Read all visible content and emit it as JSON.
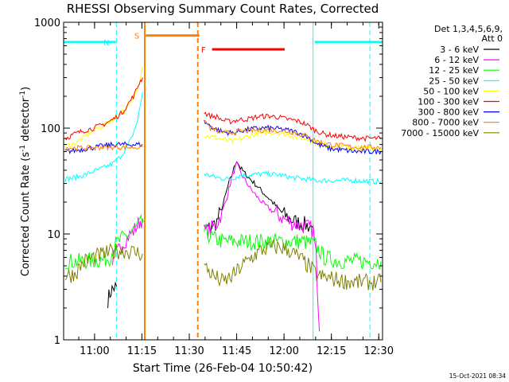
{
  "chart_data": {
    "type": "line",
    "title": "RHESSI Observing Summary Count Rates, Corrected",
    "xlabel": "Start Time (26-Feb-04 10:50:42)",
    "ylabel_main": "Corrected Count Rate (s",
    "ylabel_sup1": "-1",
    "ylabel_mid": " detector",
    "ylabel_sup2": "-1",
    "ylabel_end": ")",
    "y_scale": "log",
    "ylim": [
      1,
      1000
    ],
    "xlim_minutes_after_1050_42": [
      -0.5,
      100.5
    ],
    "x_ticks": [
      {
        "label": "11:00",
        "min": 9.3
      },
      {
        "label": "11:15",
        "min": 24.3
      },
      {
        "label": "11:30",
        "min": 39.3
      },
      {
        "label": "11:45",
        "min": 54.3
      },
      {
        "label": "12:00",
        "min": 69.3
      },
      {
        "label": "12:15",
        "min": 84.3
      },
      {
        "label": "12:30",
        "min": 99.3
      }
    ],
    "y_ticks": [
      {
        "label": "1",
        "value": 1
      },
      {
        "label": "10",
        "value": 10
      },
      {
        "label": "100",
        "value": 100
      },
      {
        "label": "1000",
        "value": 1000
      }
    ],
    "legend_header": [
      "Det 1,3,4,5,6,9,",
      "Att 0"
    ],
    "legend_placement": "right",
    "footer_date": "15-Oct-2021 08:34",
    "grid": false,
    "flags": [
      {
        "label": "N",
        "color": "#00ffff",
        "y": 650,
        "segments": [
          [
            -0.5,
            16
          ],
          [
            79,
            100.5
          ]
        ],
        "vlines": [
          {
            "x": 16.2,
            "style": "dashed"
          },
          {
            "x": 78.5,
            "style": "solid"
          },
          {
            "x": 96.5,
            "style": "dashed"
          }
        ]
      },
      {
        "label": "S",
        "color": "#ff8000",
        "y": 750,
        "segments": [
          [
            25.5,
            42.5
          ]
        ],
        "vlines": [
          {
            "x": 25.2,
            "style": "solid"
          },
          {
            "x": 42.0,
            "style": "dashed"
          }
        ]
      },
      {
        "label": "F",
        "color": "#ff0000",
        "y": 555,
        "segments": [
          [
            46.5,
            69.5
          ]
        ],
        "vlines": []
      }
    ],
    "series": [
      {
        "name": "3 - 6 keV",
        "color": "#000000",
        "segments": [
          [
            [
              13.5,
              2.4
            ],
            [
              14.5,
              2.9
            ],
            [
              15.5,
              3.1
            ],
            [
              16.3,
              3.2
            ]
          ],
          [
            [
              44.0,
              11
            ],
            [
              46.0,
              11.5
            ],
            [
              48.0,
              13
            ],
            [
              50.0,
              19
            ],
            [
              51.5,
              28
            ],
            [
              53.0,
              38
            ],
            [
              54.3,
              50
            ],
            [
              55.5,
              42
            ],
            [
              57.0,
              37
            ],
            [
              59.0,
              32
            ],
            [
              61.0,
              28
            ],
            [
              63.0,
              24
            ],
            [
              65.0,
              21
            ],
            [
              67.0,
              18
            ],
            [
              69.0,
              15.5
            ],
            [
              71.0,
              14
            ],
            [
              73.0,
              13
            ],
            [
              75.0,
              12.5
            ],
            [
              77.0,
              12
            ],
            [
              78.3,
              11.5
            ]
          ]
        ]
      },
      {
        "name": "6 - 12 keV",
        "color": "#ff00ff",
        "segments": [
          [
            [
              15.0,
              5.8
            ],
            [
              16.5,
              6.6
            ],
            [
              18.0,
              8.0
            ],
            [
              20.0,
              9.5
            ],
            [
              22.0,
              11
            ],
            [
              23.5,
              13
            ],
            [
              24.5,
              14
            ]
          ],
          [
            [
              44.0,
              10.5
            ],
            [
              46.0,
              11
            ],
            [
              48.0,
              12.5
            ],
            [
              50.0,
              17
            ],
            [
              51.5,
              24
            ],
            [
              53.0,
              36
            ],
            [
              54.3,
              46
            ],
            [
              55.5,
              38
            ],
            [
              57.0,
              32
            ],
            [
              59.0,
              26
            ],
            [
              61.0,
              22
            ],
            [
              63.0,
              19
            ],
            [
              65.0,
              17
            ],
            [
              67.0,
              15.5
            ],
            [
              69.0,
              14
            ],
            [
              71.0,
              13
            ],
            [
              73.0,
              12.5
            ],
            [
              75.0,
              12
            ],
            [
              77.0,
              11.5
            ],
            [
              78.5,
              11
            ],
            [
              79.5,
              6
            ],
            [
              80.5,
              1.2
            ]
          ]
        ]
      },
      {
        "name": "12 - 25 keV",
        "color": "#00ff00",
        "segments": [
          [
            [
              0.0,
              5.5
            ],
            [
              4.0,
              5.5
            ],
            [
              8.0,
              5.6
            ],
            [
              12.0,
              5.7
            ],
            [
              14.0,
              6.0
            ],
            [
              16.0,
              8.0
            ],
            [
              18.0,
              9.0
            ],
            [
              20.0,
              10
            ],
            [
              22.0,
              11
            ],
            [
              24.0,
              12.5
            ],
            [
              24.8,
              13.5
            ]
          ],
          [
            [
              44.0,
              10.5
            ],
            [
              47.0,
              9.0
            ],
            [
              50.0,
              8.5
            ],
            [
              55.0,
              8.5
            ],
            [
              60.0,
              8.5
            ],
            [
              65.0,
              8.5
            ],
            [
              70.0,
              8.5
            ],
            [
              75.0,
              8.5
            ],
            [
              79.0,
              8.0
            ],
            [
              82.0,
              6.0
            ],
            [
              86.0,
              5.6
            ],
            [
              92.0,
              5.5
            ],
            [
              96.0,
              5.5
            ],
            [
              100.0,
              5.5
            ]
          ]
        ]
      },
      {
        "name": "25 - 50 keV",
        "color": "#00ffff",
        "segments": [
          [
            [
              0.0,
              33
            ],
            [
              3.0,
              34
            ],
            [
              6.0,
              36
            ],
            [
              9.0,
              39
            ],
            [
              12.0,
              42
            ],
            [
              15.0,
              46
            ],
            [
              17.0,
              52
            ],
            [
              19.0,
              62
            ],
            [
              21.0,
              80
            ],
            [
              23.0,
              120
            ],
            [
              24.5,
              220
            ]
          ],
          [
            [
              44.0,
              37
            ],
            [
              48.0,
              34
            ],
            [
              52.0,
              33
            ],
            [
              56.0,
              36
            ],
            [
              60.0,
              36.5
            ],
            [
              64.0,
              37
            ],
            [
              68.0,
              36
            ],
            [
              72.0,
              34
            ],
            [
              76.0,
              33
            ],
            [
              80.0,
              32
            ],
            [
              86.0,
              32
            ],
            [
              92.0,
              32
            ],
            [
              96.0,
              31.5
            ],
            [
              100.0,
              31
            ]
          ]
        ]
      },
      {
        "name": "50 - 100 keV",
        "color": "#ffff00",
        "segments": [
          [
            [
              0.0,
              67
            ],
            [
              3.0,
              72
            ],
            [
              6.0,
              82
            ],
            [
              9.0,
              95
            ],
            [
              12.0,
              105
            ],
            [
              15.0,
              120
            ],
            [
              18.0,
              140
            ],
            [
              20.0,
              160
            ],
            [
              22.0,
              200
            ],
            [
              23.5,
              280
            ],
            [
              24.5,
              380
            ]
          ],
          [
            [
              44.0,
              85
            ],
            [
              47.0,
              82
            ],
            [
              50.0,
              78
            ],
            [
              53.0,
              75
            ],
            [
              56.0,
              80
            ],
            [
              59.0,
              86
            ],
            [
              62.0,
              90
            ],
            [
              65.0,
              92
            ],
            [
              68.0,
              90
            ],
            [
              71.0,
              86
            ],
            [
              74.0,
              82
            ],
            [
              77.0,
              78
            ],
            [
              80.0,
              72
            ],
            [
              84.0,
              68
            ],
            [
              88.0,
              66
            ],
            [
              92.0,
              65
            ],
            [
              96.0,
              65
            ],
            [
              100.0,
              64
            ]
          ]
        ]
      },
      {
        "name": "100 - 300 keV",
        "color": "#ff0000",
        "segments": [
          [
            [
              0.0,
              80
            ],
            [
              3.0,
              88
            ],
            [
              6.0,
              95
            ],
            [
              9.0,
              100
            ],
            [
              12.0,
              108
            ],
            [
              15.0,
              120
            ],
            [
              18.0,
              140
            ],
            [
              20.0,
              170
            ],
            [
              22.0,
              210
            ],
            [
              23.5,
              270
            ],
            [
              24.5,
              300
            ]
          ],
          [
            [
              44.0,
              140
            ],
            [
              46.0,
              130
            ],
            [
              48.0,
              128
            ],
            [
              50.0,
              118
            ],
            [
              52.0,
              115
            ],
            [
              55.0,
              120
            ],
            [
              58.0,
              122
            ],
            [
              61.0,
              128
            ],
            [
              64.0,
              130
            ],
            [
              67.0,
              128
            ],
            [
              70.0,
              122
            ],
            [
              73.0,
              118
            ],
            [
              76.0,
              110
            ],
            [
              79.0,
              96
            ],
            [
              82.0,
              88
            ],
            [
              86.0,
              84
            ],
            [
              90.0,
              82
            ],
            [
              95.0,
              80
            ],
            [
              100.0,
              80
            ]
          ]
        ]
      },
      {
        "name": "300 - 800 keV",
        "color": "#0000ff",
        "segments": [
          [
            [
              0.0,
              60
            ],
            [
              4.0,
              62
            ],
            [
              8.0,
              65
            ],
            [
              12.0,
              68
            ],
            [
              16.0,
              70
            ],
            [
              20.0,
              70
            ],
            [
              24.5,
              70
            ]
          ],
          [
            [
              44.0,
              115
            ],
            [
              47.0,
              100
            ],
            [
              50.0,
              92
            ],
            [
              53.0,
              90
            ],
            [
              56.0,
              95
            ],
            [
              59.0,
              98
            ],
            [
              62.0,
              100
            ],
            [
              65.0,
              100
            ],
            [
              68.0,
              98
            ],
            [
              71.0,
              95
            ],
            [
              74.0,
              90
            ],
            [
              77.0,
              82
            ],
            [
              80.0,
              70
            ],
            [
              84.0,
              64
            ],
            [
              88.0,
              62
            ],
            [
              92.0,
              60
            ],
            [
              96.0,
              60
            ],
            [
              100.0,
              60
            ]
          ]
        ]
      },
      {
        "name": "800 - 7000 keV",
        "color": "#ff8000",
        "segments": [
          [
            [
              0.0,
              65
            ],
            [
              4.0,
              65
            ],
            [
              8.0,
              65
            ],
            [
              12.0,
              66
            ],
            [
              16.0,
              66
            ],
            [
              20.0,
              66
            ],
            [
              24.5,
              66
            ]
          ],
          [
            [
              44.0,
              120
            ],
            [
              46.0,
              100
            ],
            [
              48.0,
              95
            ],
            [
              51.0,
              90
            ],
            [
              54.0,
              92
            ],
            [
              57.0,
              94
            ],
            [
              60.0,
              95
            ],
            [
              64.0,
              96
            ],
            [
              68.0,
              95
            ],
            [
              72.0,
              92
            ],
            [
              76.0,
              85
            ],
            [
              80.0,
              75
            ],
            [
              84.0,
              70
            ],
            [
              88.0,
              68
            ],
            [
              92.0,
              66
            ],
            [
              96.0,
              66
            ],
            [
              100.0,
              66
            ]
          ]
        ]
      },
      {
        "name": "7000 - 15000 keV",
        "color": "#808000",
        "segments": [
          [
            [
              0.0,
              4.0
            ],
            [
              3.0,
              4.2
            ],
            [
              6.0,
              5.5
            ],
            [
              9.0,
              6.0
            ],
            [
              12.0,
              6.4
            ],
            [
              15.0,
              6.8
            ],
            [
              18.0,
              7.0
            ],
            [
              21.0,
              6.8
            ],
            [
              24.5,
              6.5
            ]
          ],
          [
            [
              44.0,
              5.0
            ],
            [
              47.0,
              4.0
            ],
            [
              50.0,
              3.5
            ],
            [
              53.0,
              4.0
            ],
            [
              56.0,
              5.0
            ],
            [
              59.0,
              6.0
            ],
            [
              62.0,
              7.0
            ],
            [
              65.0,
              7.5
            ],
            [
              68.0,
              7.5
            ],
            [
              71.0,
              7.0
            ],
            [
              74.0,
              6.0
            ],
            [
              77.0,
              5.0
            ],
            [
              80.0,
              4.0
            ],
            [
              84.0,
              3.8
            ],
            [
              88.0,
              3.6
            ],
            [
              92.0,
              3.5
            ],
            [
              96.0,
              3.5
            ],
            [
              100.0,
              3.5
            ]
          ]
        ]
      }
    ]
  }
}
